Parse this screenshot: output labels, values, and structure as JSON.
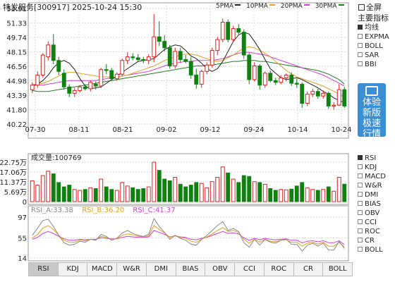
{
  "header": {
    "title": "特发服务[300917] 2025-10-24 15:30",
    "ma_labels": [
      {
        "text": "5PMA",
        "color": "#222222"
      },
      {
        "text": "10PMA",
        "color": "#e0a020"
      },
      {
        "text": "20PMA",
        "color": "#d040d0"
      },
      {
        "text": "30PMA",
        "color": "#208020"
      }
    ]
  },
  "fullscreen_label": "全屏",
  "sidebar_main": {
    "title": "主要指标",
    "items": [
      {
        "label": "均线",
        "selected": true
      },
      {
        "label": "EXPMA",
        "selected": false
      },
      {
        "label": "BOLL",
        "selected": false
      },
      {
        "label": "SAR",
        "selected": false
      },
      {
        "label": "BBI",
        "selected": false
      }
    ]
  },
  "experience_button": {
    "lines": [
      "体验",
      "新版",
      "极速",
      "行情"
    ]
  },
  "sidebar_indicators": [
    {
      "label": "RSI",
      "selected": true
    },
    {
      "label": "KDJ",
      "selected": false
    },
    {
      "label": "MACD",
      "selected": false
    },
    {
      "label": "W&R",
      "selected": false
    },
    {
      "label": "DMI",
      "selected": false
    },
    {
      "label": "BIAS",
      "selected": false
    },
    {
      "label": "OBV",
      "selected": false
    },
    {
      "label": "CCI",
      "selected": false
    },
    {
      "label": "ROC",
      "selected": false
    },
    {
      "label": "CR",
      "selected": false
    },
    {
      "label": "BOLL",
      "selected": false
    }
  ],
  "tabs": [
    "RSI",
    "KDJ",
    "MACD",
    "W&R",
    "DMI",
    "BIAS",
    "OBV",
    "CCI",
    "ROC",
    "CR",
    "BOLL"
  ],
  "active_tab": "RSI",
  "volume": {
    "label": "成交量:100769",
    "y_ticks": [
      "22.75万",
      "17.06万",
      "11.37万",
      "5.69万",
      "0"
    ]
  },
  "rsi": {
    "labels": [
      {
        "text": "RSI_A:33.38",
        "color": "#888888"
      },
      {
        "text": "RSI_B:36.20",
        "color": "#e0a020"
      },
      {
        "text": "RSI_C:41.37",
        "color": "#d040d0"
      }
    ],
    "y_ticks": [
      "97",
      "55",
      "14"
    ]
  },
  "colors": {
    "up": "#e02020",
    "down": "#108010",
    "grid": "#d8d8d8"
  },
  "chart_data": {
    "type": "candlestick",
    "price_ticks": [
      52.91,
      51.33,
      49.74,
      48.15,
      46.56,
      44.98,
      43.39,
      41.8,
      40.22
    ],
    "price_range": [
      40.22,
      52.91
    ],
    "x_labels": [
      "07-30",
      "08-11",
      "08-21",
      "09-02",
      "09-12",
      "09-24",
      "10-14",
      "10-24"
    ],
    "candles": [
      [
        44.0,
        44.8,
        43.6,
        44.5
      ],
      [
        44.5,
        46.0,
        44.2,
        45.6
      ],
      [
        45.6,
        48.0,
        45.3,
        47.8
      ],
      [
        47.6,
        49.3,
        47.2,
        48.9
      ],
      [
        48.9,
        50.1,
        46.8,
        47.2
      ],
      [
        47.2,
        47.6,
        45.6,
        46.0
      ],
      [
        45.8,
        46.2,
        44.0,
        44.3
      ],
      [
        44.3,
        44.6,
        43.2,
        43.6
      ],
      [
        43.6,
        44.2,
        43.2,
        43.9
      ],
      [
        43.9,
        44.5,
        43.7,
        44.3
      ],
      [
        44.3,
        44.6,
        43.9,
        44.1
      ],
      [
        44.1,
        45.0,
        43.8,
        44.8
      ],
      [
        44.6,
        44.9,
        44.0,
        44.4
      ],
      [
        44.4,
        46.4,
        44.2,
        46.2
      ],
      [
        46.2,
        46.8,
        45.7,
        46.1
      ],
      [
        46.1,
        46.4,
        45.0,
        45.2
      ],
      [
        45.2,
        45.9,
        45.0,
        45.7
      ],
      [
        45.7,
        47.4,
        45.5,
        47.2
      ],
      [
        47.2,
        48.1,
        46.8,
        47.6
      ],
      [
        47.6,
        48.0,
        47.2,
        47.5
      ],
      [
        47.5,
        47.9,
        47.1,
        47.3
      ],
      [
        47.3,
        47.6,
        46.9,
        47.2
      ],
      [
        47.2,
        47.9,
        46.8,
        47.6
      ],
      [
        47.6,
        52.3,
        47.0,
        49.8
      ],
      [
        49.8,
        51.5,
        48.8,
        49.3
      ],
      [
        49.3,
        50.0,
        48.2,
        48.6
      ],
      [
        48.6,
        48.9,
        46.3,
        46.6
      ],
      [
        46.6,
        48.6,
        46.3,
        48.2
      ],
      [
        48.2,
        48.6,
        47.0,
        47.3
      ],
      [
        47.3,
        47.8,
        46.9,
        47.1
      ],
      [
        47.1,
        47.6,
        45.2,
        45.6
      ],
      [
        45.6,
        46.3,
        44.1,
        44.6
      ],
      [
        44.6,
        46.2,
        44.2,
        46.0
      ],
      [
        46.0,
        47.0,
        45.7,
        46.7
      ],
      [
        46.7,
        48.6,
        46.4,
        48.3
      ],
      [
        48.3,
        49.8,
        47.8,
        49.5
      ],
      [
        49.5,
        51.8,
        49.2,
        51.4
      ],
      [
        51.4,
        51.7,
        49.2,
        49.5
      ],
      [
        49.5,
        51.0,
        49.2,
        50.7
      ],
      [
        50.7,
        51.2,
        50.0,
        50.3
      ],
      [
        50.3,
        50.6,
        47.4,
        47.8
      ],
      [
        47.8,
        48.0,
        44.6,
        45.1
      ],
      [
        45.1,
        47.0,
        44.9,
        46.6
      ],
      [
        46.6,
        46.8,
        44.0,
        44.5
      ],
      [
        44.5,
        46.0,
        44.2,
        45.8
      ],
      [
        45.8,
        46.1,
        44.8,
        45.0
      ],
      [
        45.0,
        45.3,
        44.5,
        44.8
      ],
      [
        44.8,
        45.6,
        44.6,
        45.3
      ],
      [
        45.3,
        45.8,
        44.9,
        45.6
      ],
      [
        45.6,
        45.9,
        44.4,
        44.7
      ],
      [
        44.7,
        45.2,
        44.2,
        44.6
      ],
      [
        44.6,
        44.8,
        42.0,
        42.5
      ],
      [
        42.5,
        43.8,
        42.2,
        43.5
      ],
      [
        43.5,
        44.1,
        43.2,
        43.8
      ],
      [
        43.8,
        44.1,
        43.0,
        43.3
      ],
      [
        43.3,
        43.9,
        43.0,
        43.6
      ],
      [
        43.6,
        43.8,
        41.9,
        42.2
      ],
      [
        42.2,
        42.6,
        41.8,
        42.3
      ],
      [
        42.3,
        44.6,
        42.2,
        44.0
      ],
      [
        44.0,
        44.3,
        42.0,
        42.2
      ]
    ],
    "ma5": [
      44.4,
      44.6,
      45.0,
      45.6,
      46.4,
      47.0,
      47.2,
      46.9,
      46.2,
      45.2,
      44.4,
      44.1,
      44.2,
      44.3,
      44.7,
      45.1,
      45.5,
      45.9,
      46.3,
      46.7,
      47.1,
      47.2,
      47.3,
      47.4,
      47.9,
      48.4,
      48.7,
      48.9,
      48.8,
      48.3,
      47.7,
      47.4,
      46.9,
      46.3,
      46.0,
      46.3,
      47.1,
      48.2,
      49.3,
      50.0,
      50.3,
      50.1,
      49.3,
      48.4,
      47.3,
      46.3,
      45.8,
      45.3,
      45.1,
      45.2,
      45.3,
      45.1,
      44.8,
      44.5,
      44.2,
      43.8,
      43.5,
      43.1,
      42.8,
      42.6
    ],
    "ma10": [
      44.6,
      44.6,
      44.7,
      44.9,
      45.2,
      45.5,
      45.8,
      45.9,
      45.9,
      45.8,
      45.7,
      45.6,
      45.5,
      45.4,
      45.4,
      45.4,
      45.4,
      45.5,
      45.6,
      45.8,
      46.0,
      46.2,
      46.4,
      46.6,
      46.9,
      47.2,
      47.4,
      47.6,
      47.8,
      47.9,
      47.9,
      47.8,
      47.6,
      47.4,
      47.2,
      47.1,
      47.2,
      47.5,
      47.8,
      48.2,
      48.6,
      48.7,
      48.6,
      48.3,
      48.0,
      47.6,
      47.1,
      46.6,
      46.1,
      45.7,
      45.4,
      45.2,
      45.0,
      44.8,
      44.6,
      44.4,
      44.1,
      43.8,
      43.5,
      43.2
    ],
    "ma20": [
      44.5,
      44.5,
      44.5,
      44.6,
      44.7,
      44.8,
      44.9,
      45.0,
      45.0,
      45.0,
      45.0,
      45.0,
      45.0,
      45.1,
      45.2,
      45.3,
      45.4,
      45.5,
      45.6,
      45.7,
      45.8,
      45.9,
      46.0,
      46.2,
      46.4,
      46.6,
      46.8,
      46.9,
      47.0,
      47.1,
      47.1,
      47.2,
      47.2,
      47.2,
      47.2,
      47.3,
      47.4,
      47.6,
      47.8,
      48.0,
      48.1,
      48.1,
      48.0,
      47.9,
      47.8,
      47.6,
      47.4,
      47.2,
      47.0,
      46.8,
      46.6,
      46.4,
      46.2,
      46.0,
      45.8,
      45.6,
      45.3,
      45.0,
      44.7,
      44.4
    ],
    "ma30": [
      43.9,
      43.8,
      43.8,
      43.8,
      43.9,
      44.0,
      44.1,
      44.2,
      44.3,
      44.4,
      44.5,
      44.6,
      44.7,
      44.8,
      44.9,
      45.0,
      45.1,
      45.2,
      45.3,
      45.4,
      45.5,
      45.6,
      45.7,
      45.8,
      45.9,
      46.0,
      46.1,
      46.2,
      46.3,
      46.4,
      46.5,
      46.6,
      46.6,
      46.7,
      46.7,
      46.8,
      46.9,
      47.0,
      47.1,
      47.1,
      47.2,
      47.2,
      47.2,
      47.1,
      47.1,
      47.0,
      46.9,
      46.8,
      46.7,
      46.6,
      46.5,
      46.4,
      46.3,
      46.2,
      46.1,
      45.9,
      45.7,
      45.4,
      45.1,
      44.6
    ],
    "volume_range": [
      0,
      227500
    ],
    "volumes": [
      120000,
      95000,
      150000,
      175000,
      160000,
      110000,
      85000,
      95000,
      70000,
      65000,
      70000,
      80000,
      75000,
      130000,
      85000,
      70000,
      65000,
      110000,
      90000,
      80000,
      70000,
      75000,
      85000,
      227500,
      180000,
      130000,
      120000,
      140000,
      100000,
      85000,
      95000,
      110000,
      105000,
      80000,
      115000,
      140000,
      200000,
      165000,
      130000,
      110000,
      150000,
      145000,
      115000,
      110000,
      100000,
      75000,
      65000,
      70000,
      68000,
      72000,
      90000,
      110000,
      80000,
      70000,
      65000,
      70000,
      85000,
      60000,
      140000,
      100769
    ],
    "rsi_range": [
      14,
      97
    ],
    "rsi_a": [
      60,
      75,
      90,
      93,
      78,
      60,
      45,
      40,
      42,
      48,
      46,
      52,
      50,
      62,
      58,
      50,
      54,
      65,
      70,
      64,
      60,
      58,
      62,
      94,
      78,
      66,
      52,
      60,
      54,
      50,
      42,
      40,
      52,
      60,
      70,
      80,
      88,
      70,
      74,
      68,
      45,
      36,
      52,
      40,
      52,
      46,
      44,
      50,
      52,
      42,
      42,
      28,
      40,
      44,
      38,
      44,
      30,
      30,
      48,
      33.38
    ],
    "rsi_b": [
      55,
      62,
      75,
      80,
      72,
      60,
      50,
      46,
      46,
      50,
      49,
      52,
      51,
      58,
      56,
      52,
      53,
      60,
      63,
      61,
      58,
      57,
      59,
      80,
      72,
      65,
      56,
      60,
      56,
      54,
      48,
      46,
      52,
      57,
      63,
      70,
      76,
      68,
      70,
      66,
      52,
      44,
      52,
      46,
      52,
      48,
      47,
      50,
      51,
      46,
      46,
      38,
      44,
      46,
      42,
      46,
      38,
      38,
      46,
      36.2
    ],
    "rsi_c": [
      52,
      56,
      64,
      68,
      64,
      58,
      53,
      50,
      50,
      52,
      51,
      52,
      52,
      55,
      54,
      53,
      53,
      56,
      58,
      57,
      56,
      56,
      57,
      70,
      66,
      62,
      57,
      59,
      57,
      56,
      52,
      51,
      54,
      56,
      60,
      64,
      68,
      64,
      65,
      63,
      55,
      50,
      54,
      51,
      54,
      52,
      51,
      52,
      53,
      50,
      50,
      45,
      48,
      49,
      47,
      49,
      45,
      45,
      49,
      41.37
    ]
  }
}
